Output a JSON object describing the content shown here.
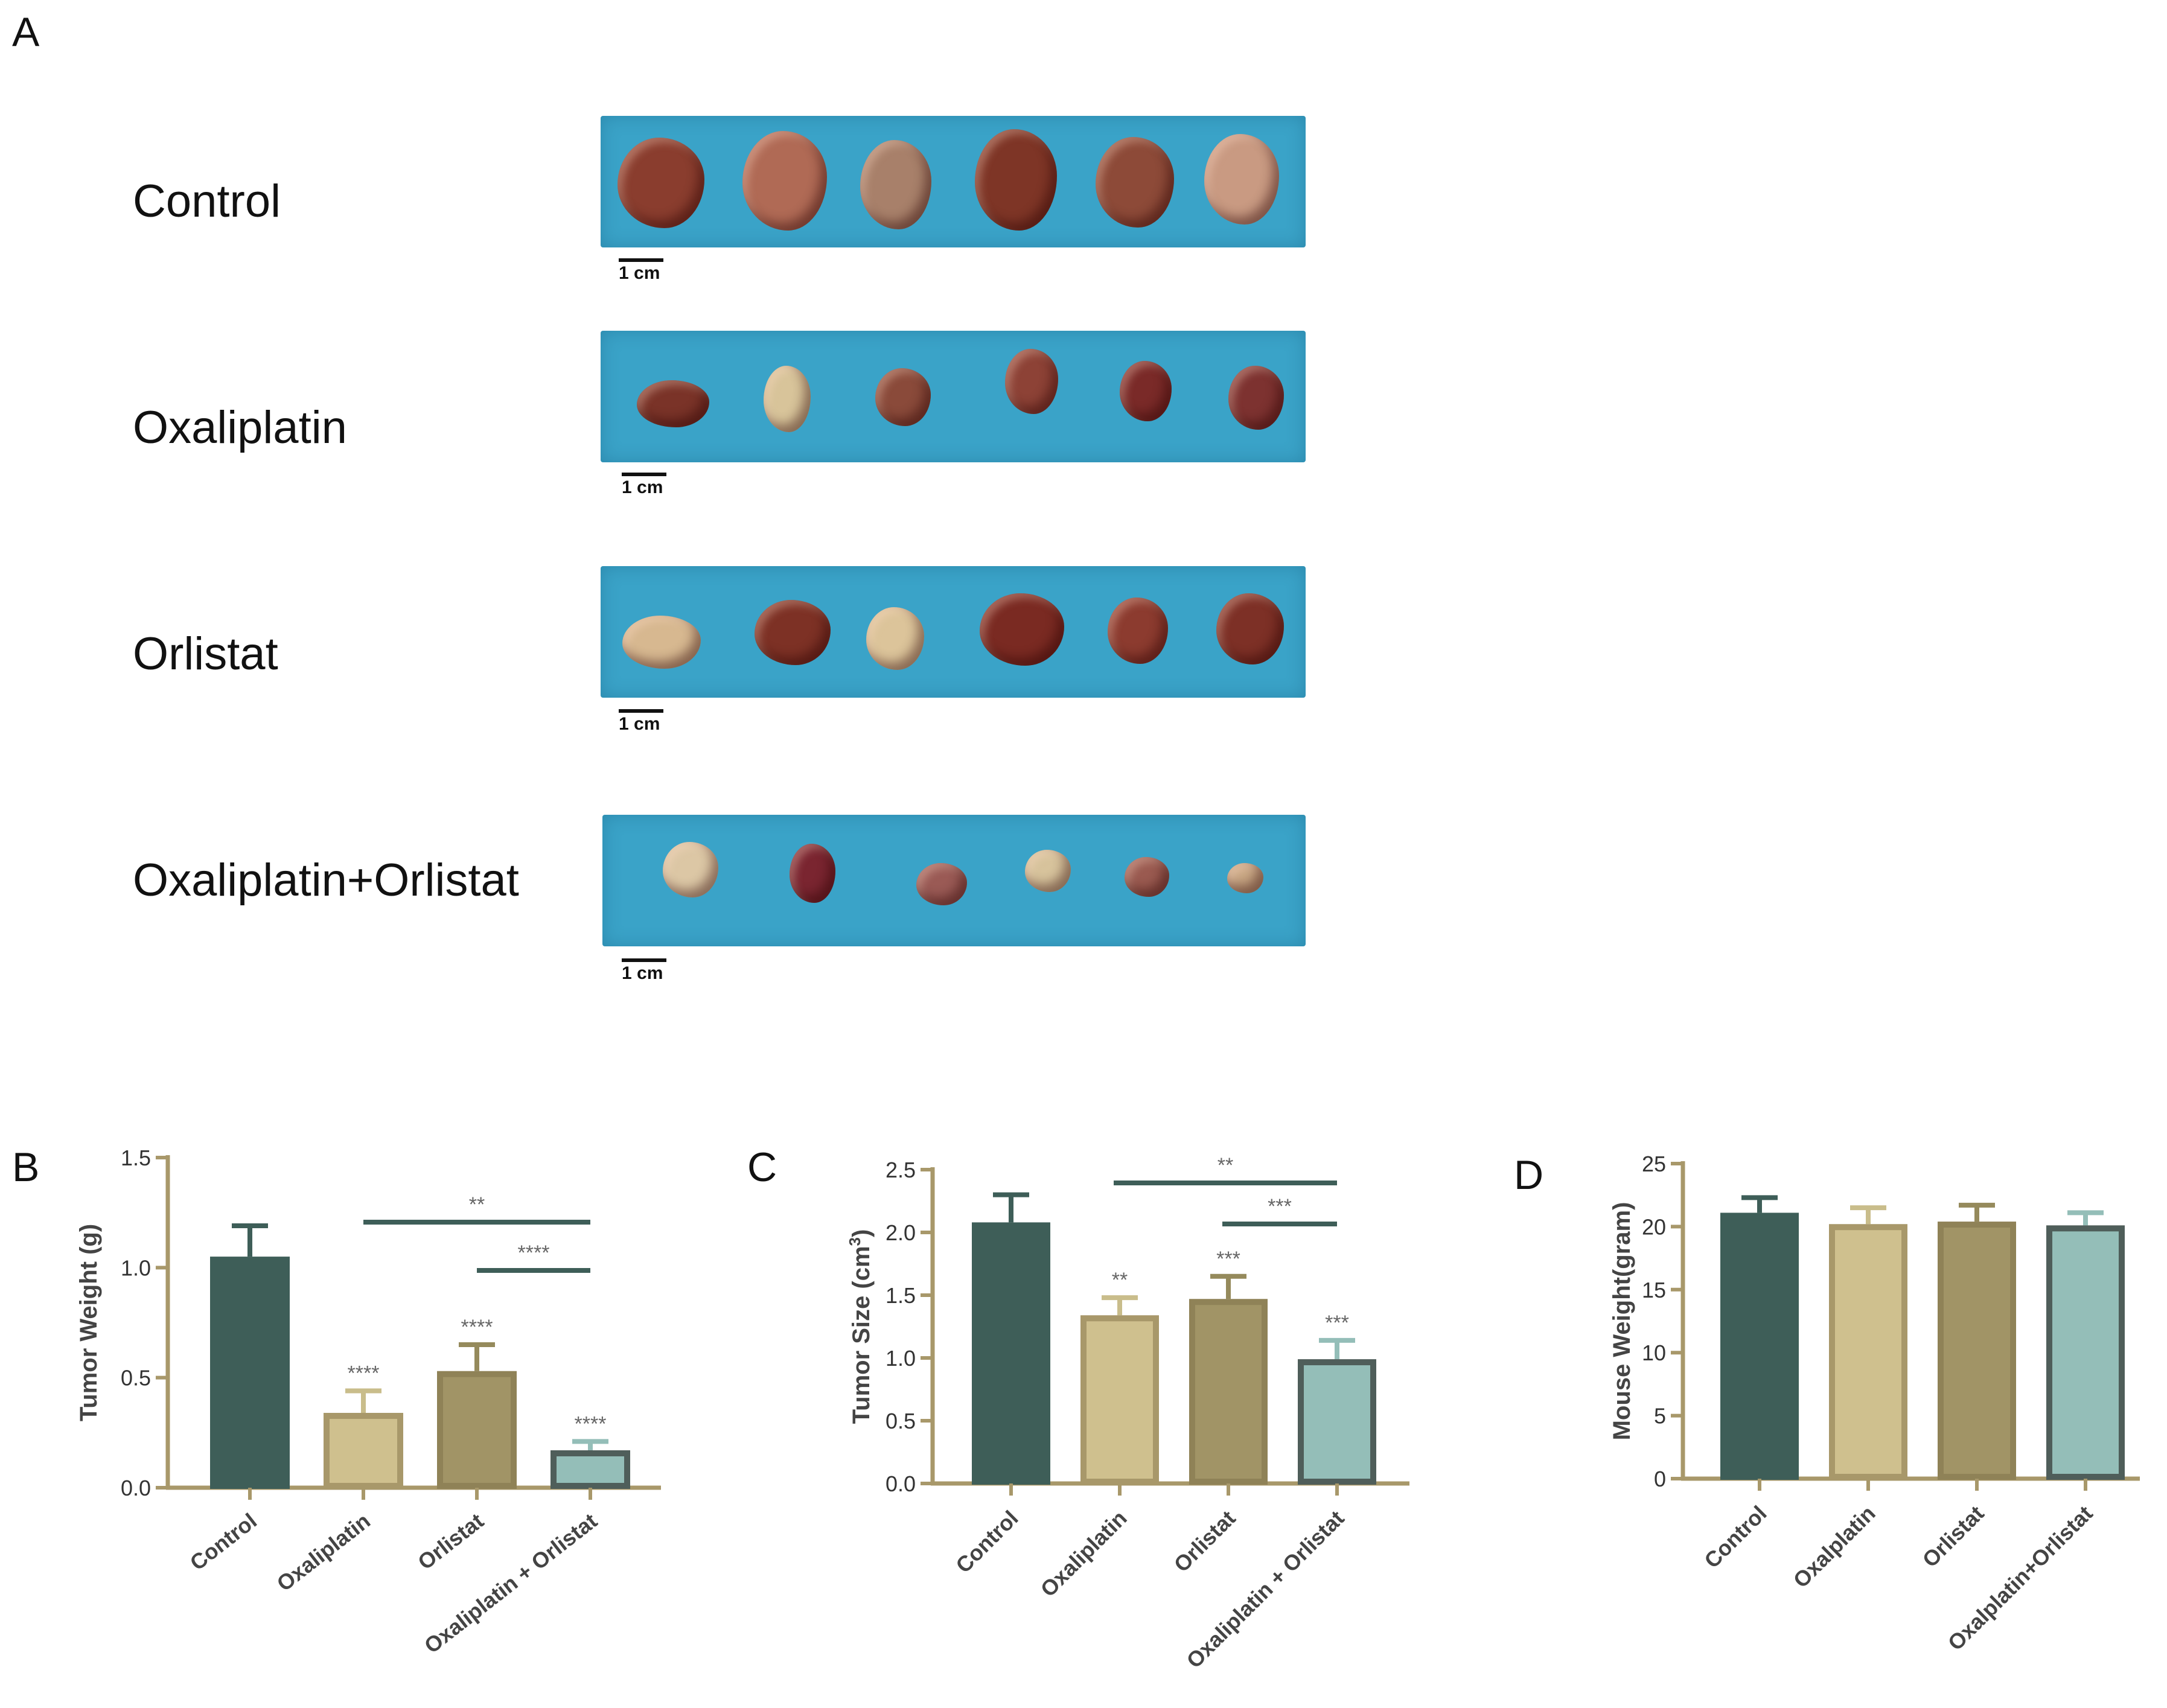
{
  "panels": {
    "A": "A",
    "B": "B",
    "C": "C",
    "D": "D"
  },
  "photo_rows": [
    {
      "label": "Control",
      "scale": "1 cm",
      "tumor_colors": [
        "#8a3d2e",
        "#b06a55",
        "#a8806a",
        "#7e3526",
        "#8d4a38",
        "#c99a82"
      ]
    },
    {
      "label": "Oxaliplatin",
      "scale": "1 cm",
      "tumor_colors": [
        "#7a3328",
        "#d8c49a",
        "#8a4a3a",
        "#8d4236",
        "#7a2a28",
        "#7d3230"
      ]
    },
    {
      "label": "Orlistat",
      "scale": "1 cm",
      "tumor_colors": [
        "#d7b890",
        "#7d3125",
        "#dcc49a",
        "#7a2a22",
        "#8c3b2f",
        "#7d3026"
      ]
    },
    {
      "label": "Oxaliplatin+Orlistat",
      "scale": "1 cm",
      "tumor_colors": [
        "#dcc7a5",
        "#7a2530",
        "#9a5a55",
        "#d7c39c",
        "#9a5a50",
        "#c9a784"
      ]
    }
  ],
  "chart_data": [
    {
      "type": "bar",
      "panel": "B",
      "ylabel": "Tumor Weight (g)",
      "categories": [
        "Control",
        "Oxaliplatin",
        "Orlistat",
        "Oxaliplatin + Orlistat"
      ],
      "values": [
        1.05,
        0.34,
        0.53,
        0.17
      ],
      "errors": [
        0.14,
        0.1,
        0.12,
        0.04
      ],
      "sig_labels": [
        "",
        "****",
        "****",
        "****"
      ],
      "ylim": [
        0,
        1.5
      ],
      "yticks": [
        "0.0",
        "0.5",
        "1.0",
        "1.5"
      ],
      "brackets": [
        {
          "from": 1,
          "to": 3,
          "label": "**"
        },
        {
          "from": 2,
          "to": 3,
          "label": "****"
        }
      ]
    },
    {
      "type": "bar",
      "panel": "C",
      "ylabel": "Tumor Size (cm",
      "ylabel_sup": "3",
      "ylabel_end": ")",
      "categories": [
        "Control",
        "Oxaliplatin",
        "Orlistat",
        "Oxaliplatin + Orlistat"
      ],
      "values": [
        2.08,
        1.34,
        1.47,
        0.99
      ],
      "errors": [
        0.22,
        0.14,
        0.18,
        0.15
      ],
      "sig_labels": [
        "",
        "**",
        "***",
        "***"
      ],
      "ylim": [
        0,
        2.5
      ],
      "yticks": [
        "0.0",
        "0.5",
        "1.0",
        "1.5",
        "2.0",
        "2.5"
      ],
      "brackets": [
        {
          "from": 1,
          "to": 3,
          "label": "**"
        },
        {
          "from": 2,
          "to": 3,
          "label": "***"
        }
      ]
    },
    {
      "type": "bar",
      "panel": "D",
      "ylabel": "Mouse Weight(gram)",
      "categories": [
        "Control",
        "Oxalplatin",
        "Orlistat",
        "Oxalplatin+Orlistat"
      ],
      "values": [
        21.1,
        20.2,
        20.4,
        20.1
      ],
      "errors": [
        1.2,
        1.3,
        1.3,
        1.0
      ],
      "sig_labels": [
        "",
        "",
        "",
        ""
      ],
      "ylim": [
        0,
        25
      ],
      "yticks": [
        "0",
        "5",
        "10",
        "15",
        "20",
        "25"
      ],
      "brackets": []
    }
  ],
  "colors": {
    "axis": "#a8986a",
    "bar_fills": [
      "#3e5e58",
      "#cfc08e",
      "#a19466",
      "#94beb8"
    ],
    "bar_edges": [
      "#3e5e58",
      "#a8986a",
      "#8f8257",
      "#4f5e5a"
    ],
    "errorbar": [
      "#3e5e58",
      "#c9bd8b",
      "#958a5c",
      "#94beb8"
    ],
    "bracket": "#3e5e58",
    "sig_text": "#666666"
  }
}
